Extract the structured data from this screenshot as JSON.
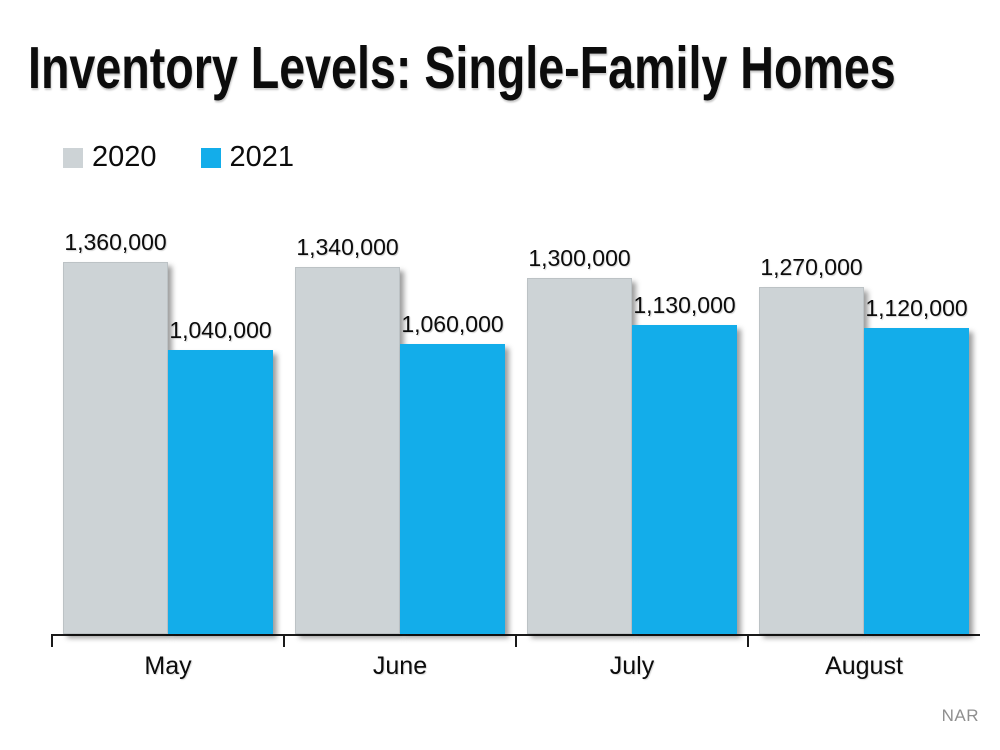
{
  "title": "Inventory Levels: Single-Family Homes",
  "source_label": "NAR",
  "colors": {
    "background": "#ffffff",
    "axis": "#1a1a1a",
    "text": "#0c0c0c",
    "source_text": "#8f8f8f",
    "bar_2020": "#cdd3d6",
    "bar_2021": "#13adea"
  },
  "chart_data": {
    "type": "bar",
    "title": "Inventory Levels: Single-Family Homes",
    "categories": [
      "May",
      "June",
      "July",
      "August"
    ],
    "series": [
      {
        "name": "2020",
        "color": "#cdd3d6",
        "values": [
          1360000,
          1340000,
          1300000,
          1270000
        ],
        "value_labels": [
          "1,360,000",
          "1,340,000",
          "1,300,000",
          "1,270,000"
        ]
      },
      {
        "name": "2021",
        "color": "#13adea",
        "values": [
          1040000,
          1060000,
          1130000,
          1120000
        ],
        "value_labels": [
          "1,040,000",
          "1,060,000",
          "1,130,000",
          "1,120,000"
        ]
      }
    ],
    "xlabel": "",
    "ylabel": "",
    "ylim": [
      0,
      1400000
    ],
    "grid": false,
    "legend_position": "top-left",
    "value_labels": true,
    "source": "NAR"
  }
}
